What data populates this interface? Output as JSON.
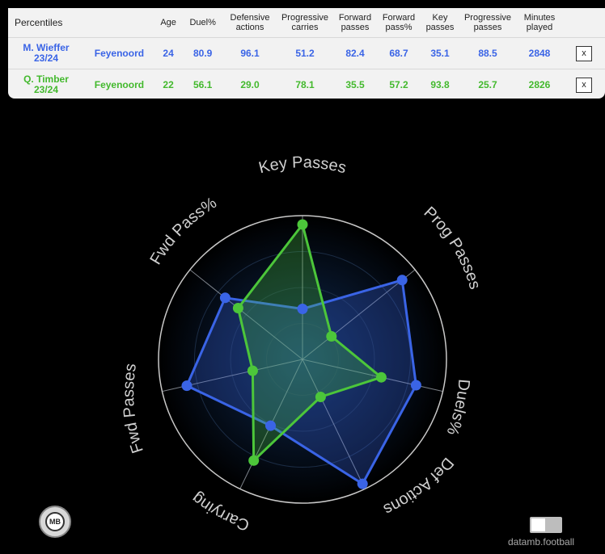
{
  "table": {
    "title": "Percentiles",
    "headers": [
      "Age",
      "Duel%",
      "Defensive actions",
      "Progressive carries",
      "Forward passes",
      "Forward pass%",
      "Key passes",
      "Progressive passes",
      "Minutes played"
    ],
    "rows": [
      {
        "player": "M. Wieffer",
        "season": "23/24",
        "team": "Feyenoord",
        "values": [
          "24",
          "80.9",
          "96.1",
          "51.2",
          "82.4",
          "68.7",
          "35.1",
          "88.5",
          "2848"
        ],
        "remove_label": "x"
      },
      {
        "player": "Q. Timber",
        "season": "23/24",
        "team": "Feyenoord",
        "values": [
          "22",
          "56.1",
          "29.0",
          "78.1",
          "35.5",
          "57.2",
          "93.8",
          "25.7",
          "2826"
        ],
        "remove_label": "x"
      }
    ]
  },
  "chart_data": {
    "type": "radar",
    "axes": [
      "Key Passes",
      "Prog Passes",
      "Duels%",
      "Def Actions",
      "Carrying",
      "Fwd Passes",
      "Fwd Pass%"
    ],
    "range": [
      0,
      100
    ],
    "grid": true,
    "series": [
      {
        "name": "M. Wieffer 23/24",
        "color": "#3a64e6",
        "values": [
          35.1,
          88.5,
          80.9,
          96.1,
          51.2,
          82.4,
          68.7
        ]
      },
      {
        "name": "Q. Timber 23/24",
        "color": "#4cc63a",
        "values": [
          93.8,
          25.7,
          56.1,
          29.0,
          78.1,
          35.5,
          57.2
        ]
      }
    ]
  },
  "footer": {
    "logo_text": "MB",
    "credit": "datamb.football"
  }
}
